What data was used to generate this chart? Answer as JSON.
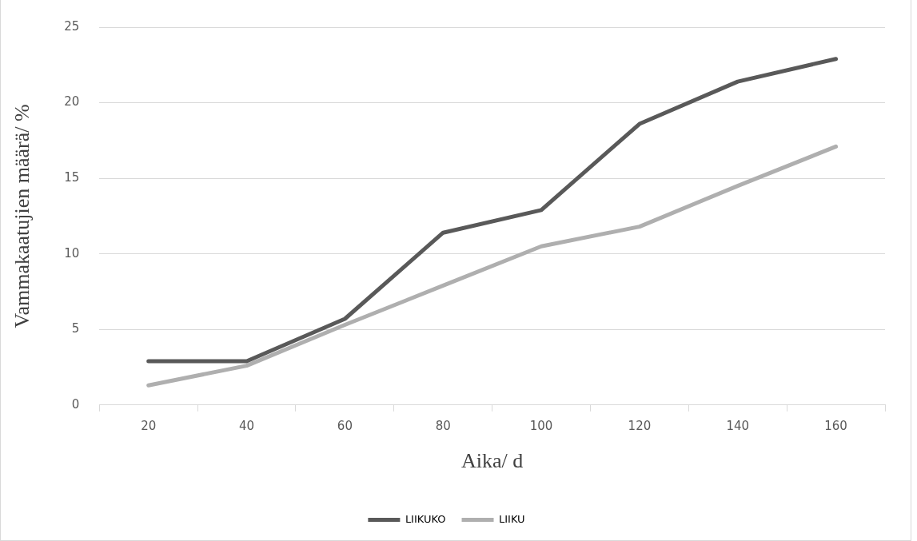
{
  "chart_data": {
    "type": "line",
    "xlabel": "Aika/ d",
    "ylabel": "Vammakaatujien määrä/ %",
    "categories": [
      "20",
      "40",
      "60",
      "80",
      "100",
      "120",
      "140",
      "160"
    ],
    "series": [
      {
        "name": "LIIKUKO",
        "color": "#595959",
        "values": [
          2.9,
          2.9,
          5.7,
          11.4,
          12.9,
          18.6,
          21.4,
          22.9
        ]
      },
      {
        "name": "LIIKU",
        "color": "#afafaf",
        "values": [
          1.3,
          2.6,
          5.3,
          7.9,
          10.5,
          11.8,
          14.5,
          17.1
        ]
      }
    ],
    "ylim": [
      0,
      25
    ],
    "yticks": [
      0,
      5,
      10,
      15,
      20,
      25
    ],
    "grid": "y",
    "legend": "bottom",
    "marker": "none",
    "line_style": "solid"
  }
}
